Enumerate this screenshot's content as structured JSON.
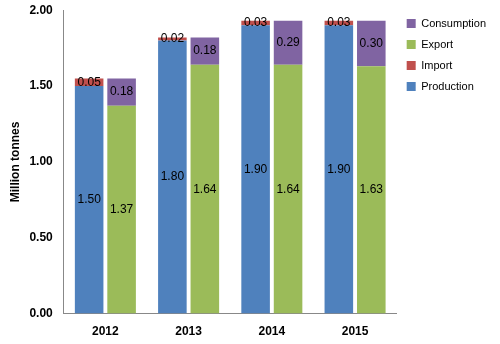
{
  "chart_data": {
    "type": "bar",
    "y_label": "Million tonnes",
    "categories": [
      "2012",
      "2013",
      "2014",
      "2015"
    ],
    "stacked": true,
    "stacks": [
      [
        {
          "name": "Production",
          "color": "#4f81bd",
          "values": [
            1.5,
            1.8,
            1.9,
            1.9
          ],
          "value_labels": [
            "1.50",
            "1.80",
            "1.90",
            "1.90"
          ]
        },
        {
          "name": "Import",
          "color": "#c0504d",
          "values": [
            0.05,
            0.02,
            0.03,
            0.03
          ],
          "value_labels": [
            "0.05",
            "0.02",
            "0.03",
            "0.03"
          ]
        }
      ],
      [
        {
          "name": "Export",
          "color": "#9bbb59",
          "values": [
            1.37,
            1.64,
            1.64,
            1.63
          ],
          "value_labels": [
            "1.37",
            "1.64",
            "1.64",
            "1.63"
          ]
        },
        {
          "name": "Consumption",
          "color": "#8064a2",
          "values": [
            0.18,
            0.18,
            0.29,
            0.3
          ],
          "value_labels": [
            "0.18",
            "0.18",
            "0.29",
            "0.30"
          ]
        }
      ]
    ],
    "ylim": [
      0,
      2
    ],
    "yticks": [
      {
        "value": 0,
        "label": "0.00"
      },
      {
        "value": 0.5,
        "label": "0.50"
      },
      {
        "value": 1,
        "label": "1.00"
      },
      {
        "value": 1.5,
        "label": "1.50"
      },
      {
        "value": 2,
        "label": "2.00"
      }
    ],
    "grid": false,
    "legend": "right",
    "data_labels": true
  }
}
